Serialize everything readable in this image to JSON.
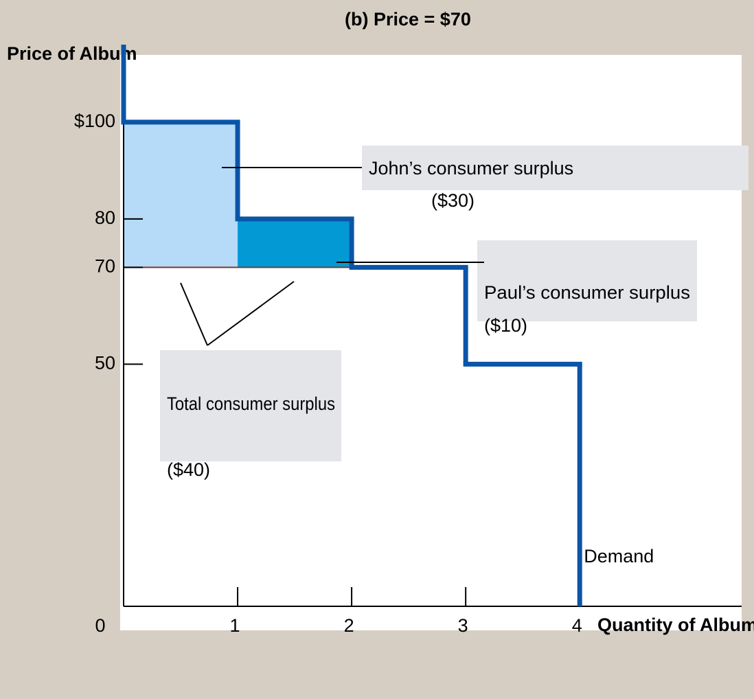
{
  "chart_data": {
    "type": "step",
    "title": "(b) Price = $70",
    "x_label": "Quantity of Albums",
    "y_label": "Price of Album",
    "series_name": "Demand",
    "values": [
      100,
      80,
      70,
      50
    ],
    "price": 70,
    "xlim": [
      0,
      5.42
    ],
    "ylim": [
      0,
      116
    ],
    "xticks": [
      0,
      1,
      2,
      3,
      4
    ],
    "yticks": [
      {
        "value": 100,
        "label": "$100"
      },
      80,
      70,
      50
    ],
    "surplus": [
      {
        "name": "John’s consumer surplus",
        "value": 30,
        "label": "($30)"
      },
      {
        "name": "Paul’s consumer surplus",
        "value": 10,
        "label": "($10)"
      },
      {
        "name": "Total consumer surplus",
        "value": 40,
        "label": "($40)"
      }
    ],
    "line_color": "#0a55a8",
    "john_color": "#b5dbf8",
    "paul_color": "#0399d5",
    "price_line_color": "#7a3b2e"
  }
}
